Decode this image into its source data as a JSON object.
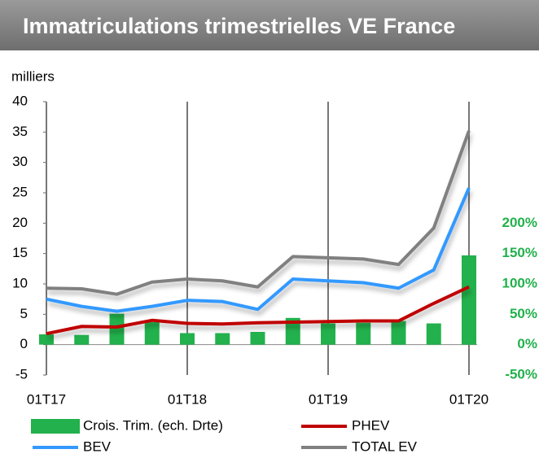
{
  "chart_data": {
    "type": "line",
    "title": "Immatriculations trimestrielles VE France",
    "y_axis_label": "milliers",
    "categories": [
      "01T17",
      null,
      null,
      null,
      "01T18",
      null,
      null,
      null,
      "01T19",
      null,
      null,
      null,
      "01T20"
    ],
    "ylim": [
      -5,
      40
    ],
    "yticks": [
      -5,
      0,
      5,
      10,
      15,
      20,
      25,
      30,
      35,
      40
    ],
    "y2lim": [
      -50,
      400
    ],
    "y2ticks": [
      {
        "value": -50,
        "label": "-50%"
      },
      {
        "value": 0,
        "label": "0%"
      },
      {
        "value": 50,
        "label": "50%"
      },
      {
        "value": 100,
        "label": "100%"
      },
      {
        "value": 150,
        "label": "150%"
      },
      {
        "value": 200,
        "label": "200%"
      }
    ],
    "series": [
      {
        "name": "Crois. Trim. (ech. Drte)",
        "type": "bar",
        "axis": "y2",
        "color": "#22b14c",
        "values": [
          17,
          16,
          51,
          37,
          19,
          19,
          21,
          44,
          35,
          36,
          39,
          35,
          147
        ]
      },
      {
        "name": "PHEV",
        "type": "line",
        "color": "#c00000",
        "values": [
          1.8,
          3,
          2.9,
          4,
          3.5,
          3.4,
          3.6,
          3.7,
          3.8,
          3.9,
          3.9,
          6.8,
          9.5
        ]
      },
      {
        "name": "BEV",
        "type": "line",
        "color": "#3399ff",
        "values": [
          7.5,
          6.3,
          5.5,
          6.3,
          7.3,
          7.1,
          5.8,
          10.8,
          10.5,
          10.2,
          9.3,
          12.3,
          25.8
        ]
      },
      {
        "name": "TOTAL EV",
        "type": "line",
        "color": "#808080",
        "values": [
          9.3,
          9.2,
          8.3,
          10.3,
          10.8,
          10.5,
          9.5,
          14.5,
          14.3,
          14.1,
          13.2,
          19.2,
          35.2
        ]
      }
    ]
  }
}
